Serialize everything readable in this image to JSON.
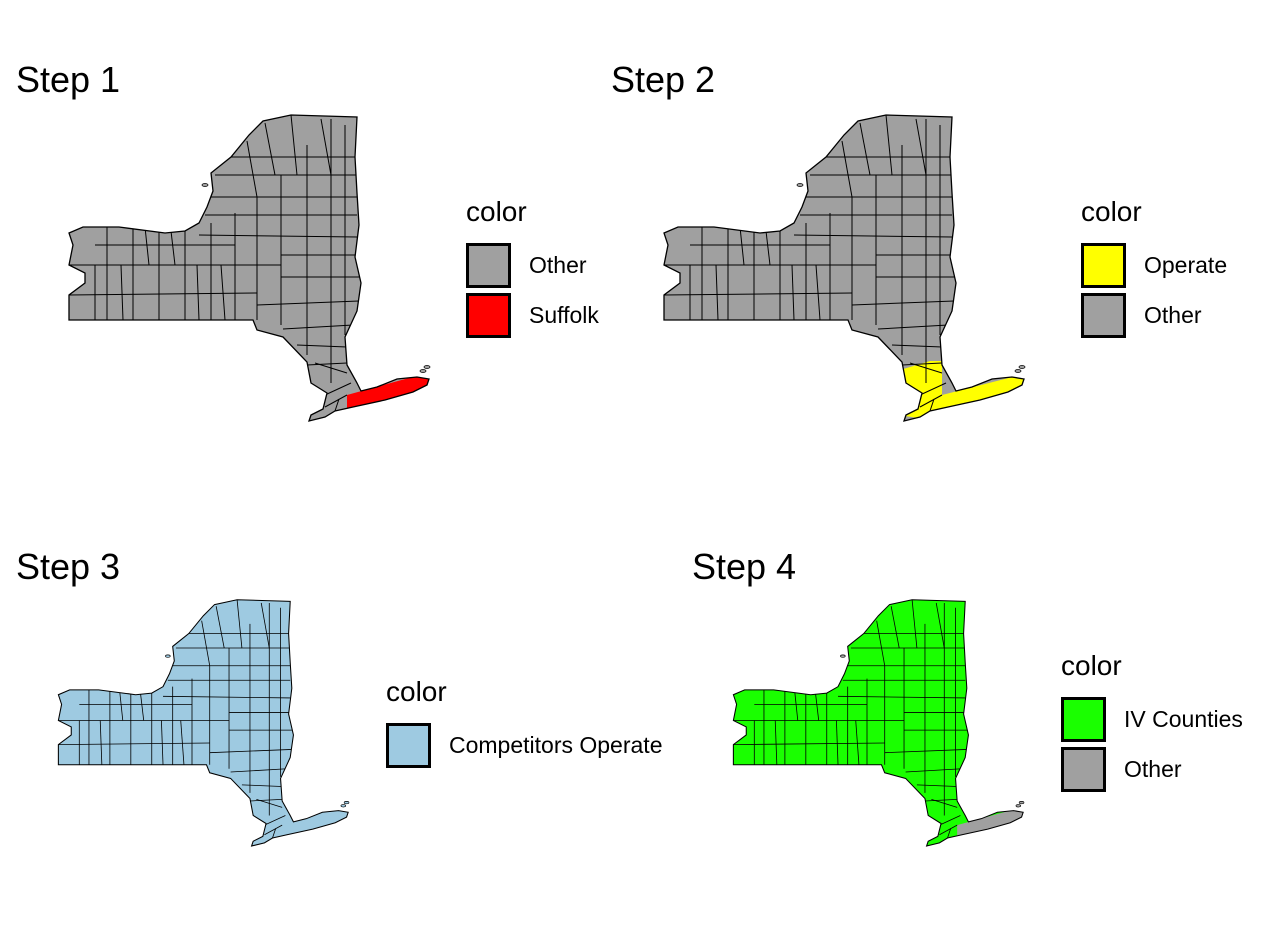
{
  "panels": [
    {
      "title": "Step 1",
      "legend": {
        "title": "color",
        "items": [
          {
            "label": "Other",
            "color": "#A0A0A0"
          },
          {
            "label": "Suffolk",
            "color": "#FF0000"
          }
        ]
      },
      "base_color": "#A0A0A0",
      "highlight": "Suffolk",
      "highlight_color": "#FF0000"
    },
    {
      "title": "Step 2",
      "legend": {
        "title": "color",
        "items": [
          {
            "label": "Operate",
            "color": "#FFFF00"
          },
          {
            "label": "Other",
            "color": "#A0A0A0"
          }
        ]
      },
      "base_color": "#A0A0A0",
      "highlight": "Downstate",
      "highlight_color": "#FFFF00"
    },
    {
      "title": "Step 3",
      "legend": {
        "title": "color",
        "items": [
          {
            "label": "Competitors Operate",
            "color": "#9ECAE1"
          }
        ]
      },
      "base_color": "#9ECAE1",
      "highlight": "",
      "highlight_color": "#9ECAE1"
    },
    {
      "title": "Step 4",
      "legend": {
        "title": "color",
        "items": [
          {
            "label": "IV Counties",
            "color": "#1AFF00"
          },
          {
            "label": "Other",
            "color": "#A0A0A0"
          }
        ]
      },
      "base_color": "#1AFF00",
      "highlight": "Long Island",
      "highlight_color": "#A0A0A0"
    }
  ]
}
